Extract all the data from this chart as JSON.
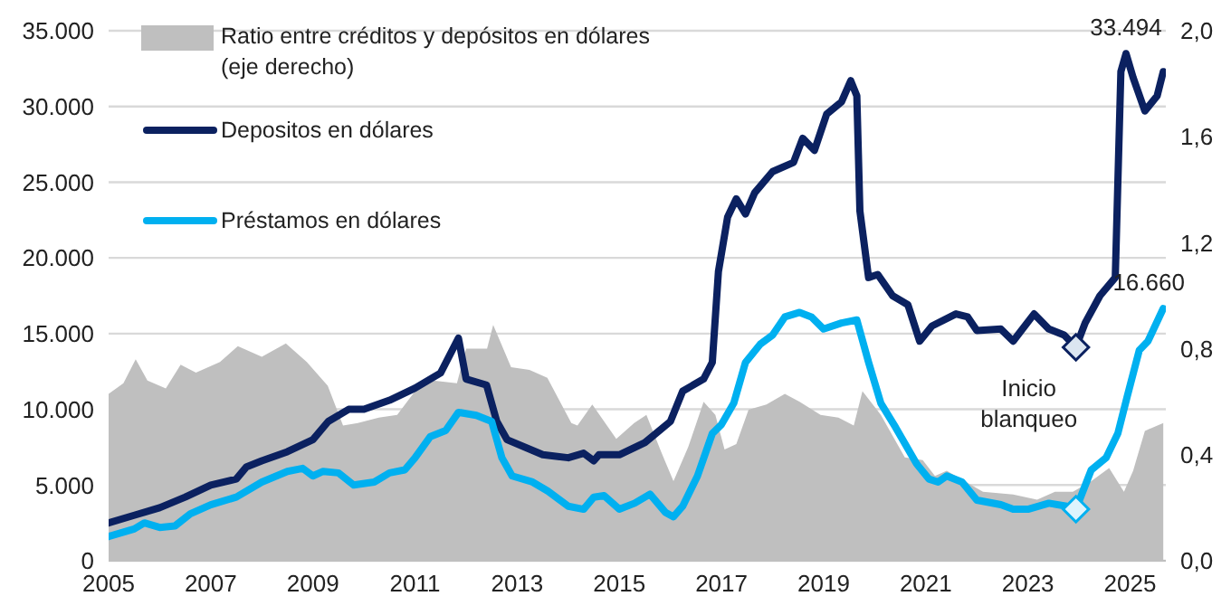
{
  "chart_data": {
    "type": "line",
    "xlim": [
      2005,
      2025.7
    ],
    "xticks": [
      2005,
      2007,
      2009,
      2011,
      2013,
      2015,
      2017,
      2019,
      2021,
      2023,
      2025
    ],
    "ylim": [
      0,
      35000
    ],
    "yticks": [
      {
        "value": 0,
        "label": "0"
      },
      {
        "value": 5000,
        "label": "5.000"
      },
      {
        "value": 10000,
        "label": "10.000"
      },
      {
        "value": 15000,
        "label": "15.000"
      },
      {
        "value": 20000,
        "label": "20.000"
      },
      {
        "value": 25000,
        "label": "25.000"
      },
      {
        "value": 30000,
        "label": "30.000"
      },
      {
        "value": 35000,
        "label": "35.000"
      }
    ],
    "y2lim": [
      0,
      2.0
    ],
    "y2ticks": [
      {
        "value": 0,
        "label": "0,0"
      },
      {
        "value": 0.4,
        "label": "0,4"
      },
      {
        "value": 0.8,
        "label": "0,8"
      },
      {
        "value": 1.2,
        "label": "1,2"
      },
      {
        "value": 1.6,
        "label": "1,6"
      },
      {
        "value": 2.0,
        "label": "2,0"
      }
    ],
    "grid": "y",
    "legend": "top left",
    "line_style": "solid",
    "marker": "none",
    "series": [
      {
        "name": "Ratio entre créditos y depósitos en dólares (eje derecho)",
        "type": "area",
        "axis": "y2",
        "color": "#bfbfbf",
        "x": [
          2005,
          2005.29,
          2005.53,
          2005.76,
          2006.12,
          2006.41,
          2006.71,
          2007.18,
          2007.53,
          2008,
          2008.47,
          2008.88,
          2009.29,
          2009.59,
          2009.88,
          2010.29,
          2010.65,
          2011,
          2011.35,
          2011.82,
          2012,
          2012.41,
          2012.53,
          2012.88,
          2013.24,
          2013.59,
          2014.06,
          2014.18,
          2014.47,
          2014.94,
          2015.29,
          2015.53,
          2015.82,
          2016.06,
          2016.35,
          2016.65,
          2016.88,
          2017.06,
          2017.29,
          2017.53,
          2017.88,
          2018.24,
          2018.53,
          2018.94,
          2019.29,
          2019.59,
          2019.76,
          2020.12,
          2020.59,
          2020.94,
          2021.18,
          2021.41,
          2021.76,
          2022.12,
          2022.71,
          2023.18,
          2023.53,
          2023.88,
          2024.24,
          2024.59,
          2024.88,
          2025.06,
          2025.29,
          2025.65
        ],
        "values": [
          0.63,
          0.67,
          0.76,
          0.68,
          0.65,
          0.74,
          0.71,
          0.75,
          0.81,
          0.77,
          0.82,
          0.75,
          0.66,
          0.51,
          0.52,
          0.54,
          0.55,
          0.64,
          0.68,
          0.67,
          0.8,
          0.8,
          0.89,
          0.73,
          0.72,
          0.69,
          0.52,
          0.51,
          0.59,
          0.46,
          0.52,
          0.55,
          0.41,
          0.3,
          0.43,
          0.6,
          0.55,
          0.42,
          0.44,
          0.57,
          0.59,
          0.63,
          0.6,
          0.55,
          0.54,
          0.51,
          0.64,
          0.55,
          0.39,
          0.38,
          0.32,
          0.34,
          0.3,
          0.26,
          0.25,
          0.23,
          0.26,
          0.26,
          0.3,
          0.35,
          0.26,
          0.34,
          0.49,
          0.52
        ]
      },
      {
        "name": "Depositos en dólares",
        "color": "#0b2160",
        "x": [
          2005,
          2005.5,
          2006,
          2006.5,
          2007,
          2007.5,
          2007.7,
          2008,
          2008.5,
          2009,
          2009.3,
          2009.7,
          2010,
          2010.5,
          2011,
          2011.5,
          2011.85,
          2012,
          2012.4,
          2012.6,
          2012.8,
          2013.5,
          2014,
          2014.3,
          2014.5,
          2014.6,
          2015,
          2015.5,
          2016,
          2016.24,
          2016.65,
          2016.82,
          2016.94,
          2017.12,
          2017.29,
          2017.47,
          2017.65,
          2018,
          2018.41,
          2018.59,
          2018.82,
          2019.06,
          2019.35,
          2019.53,
          2019.65,
          2019.71,
          2019.88,
          2020.06,
          2020.35,
          2020.65,
          2020.88,
          2021.12,
          2021.59,
          2021.82,
          2022,
          2022.47,
          2022.71,
          2023.12,
          2023.41,
          2023.71,
          2023.94,
          2024.12,
          2024.41,
          2024.71,
          2024.82,
          2024.92,
          2025.06,
          2025.29,
          2025.53,
          2025.65
        ],
        "values": [
          2500,
          3000,
          3500,
          4200,
          5000,
          5400,
          6200,
          6600,
          7200,
          8000,
          9200,
          10000,
          10000,
          10600,
          11400,
          12400,
          14700,
          12000,
          11600,
          9200,
          8000,
          7000,
          6800,
          7100,
          6600,
          7000,
          7000,
          7800,
          9200,
          11200,
          12000,
          13100,
          19100,
          22700,
          23900,
          22900,
          24300,
          25700,
          26300,
          27900,
          27100,
          29500,
          30300,
          31700,
          30700,
          23100,
          18700,
          18900,
          17500,
          16900,
          14500,
          15500,
          16300,
          16100,
          15200,
          15300,
          14500,
          16300,
          15300,
          14900,
          14100,
          15700,
          17500,
          18700,
          32300,
          33494,
          31900,
          29700,
          30700,
          32300
        ]
      },
      {
        "name": "Préstamos en dólares",
        "color": "#00b0f0",
        "x": [
          2005,
          2005.5,
          2005.7,
          2006,
          2006.3,
          2006.6,
          2007,
          2007.5,
          2008,
          2008.5,
          2008.8,
          2009,
          2009.2,
          2009.5,
          2009.8,
          2010.2,
          2010.5,
          2010.8,
          2011,
          2011.3,
          2011.6,
          2011.85,
          2012.2,
          2012.5,
          2012.7,
          2012.9,
          2013.3,
          2013.6,
          2014,
          2014.3,
          2014.5,
          2014.7,
          2015,
          2015.3,
          2015.6,
          2015.9,
          2016.06,
          2016.24,
          2016.53,
          2016.82,
          2017,
          2017.24,
          2017.47,
          2017.76,
          2018,
          2018.24,
          2018.53,
          2018.76,
          2019,
          2019.35,
          2019.65,
          2019.88,
          2020.12,
          2020.41,
          2020.82,
          2021.06,
          2021.24,
          2021.41,
          2021.71,
          2022,
          2022.47,
          2022.71,
          2023,
          2023.41,
          2023.76,
          2023.94,
          2024.24,
          2024.53,
          2024.76,
          2024.94,
          2025.18,
          2025.35,
          2025.65
        ],
        "values": [
          1600,
          2100,
          2500,
          2200,
          2300,
          3100,
          3700,
          4200,
          5200,
          5900,
          6100,
          5600,
          5900,
          5800,
          5000,
          5200,
          5800,
          6000,
          6800,
          8200,
          8600,
          9800,
          9600,
          9200,
          6800,
          5600,
          5200,
          4600,
          3600,
          3400,
          4200,
          4300,
          3400,
          3800,
          4400,
          3200,
          2900,
          3600,
          5600,
          8400,
          9000,
          10400,
          13100,
          14300,
          14900,
          16100,
          16400,
          16100,
          15300,
          15700,
          15900,
          13100,
          10400,
          8800,
          6400,
          5400,
          5200,
          5600,
          5200,
          4000,
          3700,
          3400,
          3400,
          3800,
          3600,
          3400,
          6000,
          6800,
          8400,
          10800,
          13900,
          14500,
          16660
        ]
      }
    ],
    "annotations": [
      {
        "text": "33.494",
        "x": 2024.92,
        "y": 33494
      },
      {
        "text": "16.660",
        "x": 2025.65,
        "y": 16660
      },
      {
        "text": "Inicio blanqueo",
        "x": 2023.94,
        "y": 14100
      }
    ]
  }
}
